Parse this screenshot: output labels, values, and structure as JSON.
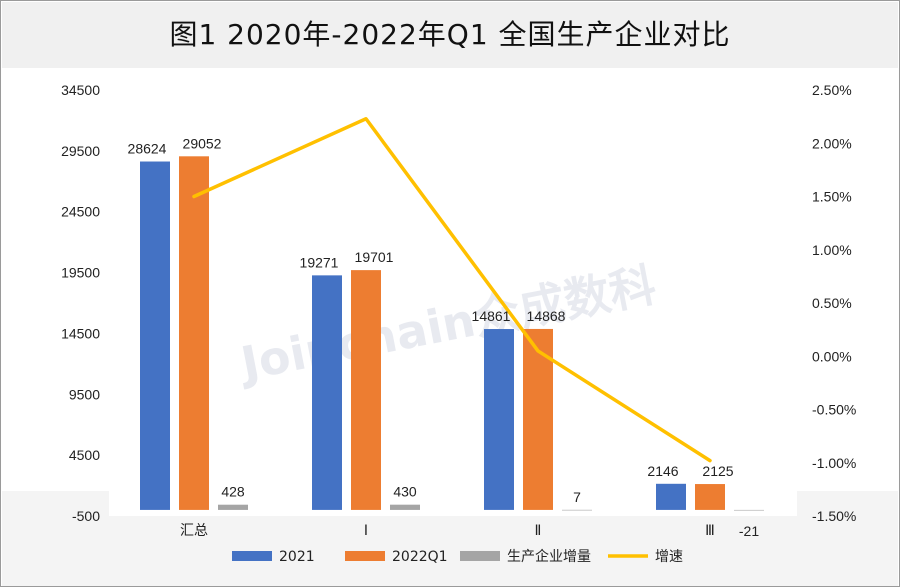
{
  "title": "图1  2020年-2022年Q1 全国生产企业对比",
  "watermark": "Joinchain众成数科",
  "chart_data": {
    "type": "bar",
    "categories": [
      "汇总",
      "Ⅰ",
      "Ⅱ",
      "Ⅲ"
    ],
    "series": [
      {
        "name": "2021",
        "type": "bar",
        "axis": "left",
        "color": "#4472C4",
        "values": [
          28624,
          19271,
          14861,
          2146
        ],
        "labels": [
          "28624",
          "19271",
          "14861",
          "2146"
        ]
      },
      {
        "name": "2022Q1",
        "type": "bar",
        "axis": "left",
        "color": "#ED7D31",
        "values": [
          29052,
          19701,
          14868,
          2125
        ],
        "labels": [
          "29052",
          "19701",
          "14868",
          "2125"
        ]
      },
      {
        "name": "生产企业增量",
        "type": "bar",
        "axis": "left",
        "color": "#A5A5A5",
        "values": [
          428,
          430,
          7,
          -21
        ],
        "labels": [
          "428",
          "430",
          "7",
          "-21"
        ]
      },
      {
        "name": "增速",
        "type": "line",
        "axis": "right",
        "color": "#FFC000",
        "values": [
          1.5,
          2.23,
          0.05,
          -0.98
        ]
      }
    ],
    "y_left": {
      "range": [
        -500,
        34500
      ],
      "ticks": [
        "-500",
        "4500",
        "9500",
        "14500",
        "19500",
        "24500",
        "29500",
        "34500"
      ]
    },
    "y_right": {
      "range": [
        -1.5,
        2.5
      ],
      "ticks": [
        "-1.50%",
        "-1.00%",
        "-0.50%",
        "0.00%",
        "0.50%",
        "1.00%",
        "1.50%",
        "2.00%",
        "2.50%"
      ]
    },
    "legend": {
      "placement": "bottom",
      "entries": [
        "2021",
        "2022Q1",
        "生产企业增量",
        "增速"
      ]
    }
  }
}
